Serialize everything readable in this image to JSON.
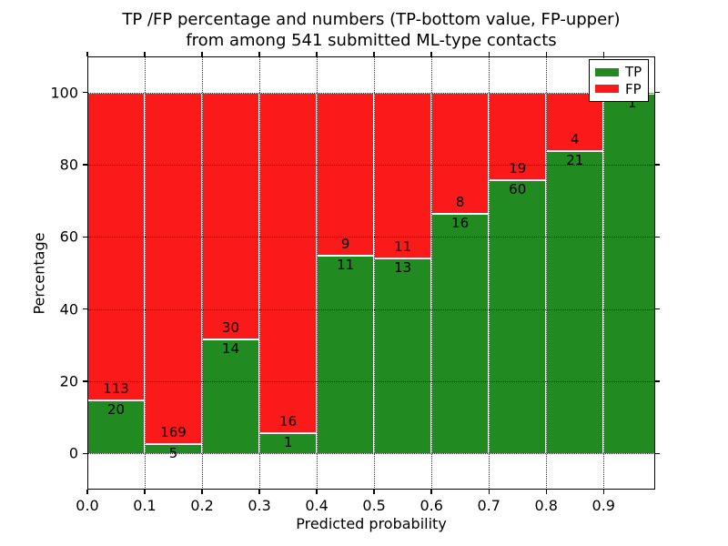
{
  "figure": {
    "title_line1": "TP /FP percentage and numbers (TP-bottom value, FP-upper)",
    "title_line2": "from among 541 submitted ML-type contacts"
  },
  "chart_data": {
    "type": "bar",
    "stacked": true,
    "normalized_to_percent": true,
    "title": "TP /FP percentage and numbers (TP-bottom value, FP-upper) from among 541 submitted ML-type contacts",
    "xlabel": "Predicted probability",
    "ylabel": "Percentage",
    "total_contacts": 541,
    "categories": [
      "0.0-0.1",
      "0.1-0.2",
      "0.2-0.3",
      "0.3-0.4",
      "0.4-0.5",
      "0.5-0.6",
      "0.6-0.7",
      "0.7-0.8",
      "0.8-0.9",
      "0.9-1.0"
    ],
    "bin_starts": [
      0.0,
      0.1,
      0.2,
      0.3,
      0.4,
      0.5,
      0.6,
      0.7,
      0.8,
      0.9
    ],
    "bin_width": 0.1,
    "series": [
      {
        "name": "TP",
        "color": "#218a21",
        "values": [
          20,
          5,
          14,
          1,
          11,
          13,
          16,
          60,
          21,
          1
        ]
      },
      {
        "name": "FP",
        "color": "#fb1a1a",
        "values": [
          113,
          169,
          30,
          16,
          9,
          11,
          8,
          19,
          4,
          0
        ]
      }
    ],
    "tp_percent": [
      15.0,
      2.9,
      31.8,
      5.9,
      55.0,
      54.2,
      66.7,
      75.9,
      84.0,
      100.0
    ],
    "x_tick_labels": [
      "0.0",
      "0.1",
      "0.2",
      "0.3",
      "0.4",
      "0.5",
      "0.6",
      "0.7",
      "0.8",
      "0.9"
    ],
    "y_ticks": [
      0,
      20,
      40,
      60,
      80,
      100
    ],
    "y_tick_labels": [
      "0",
      "20",
      "40",
      "60",
      "80",
      "100"
    ],
    "xlim": [
      0.0,
      0.99
    ],
    "ylim": [
      -10,
      110
    ],
    "grid": "dotted black, drawn above bars",
    "legend_position": "upper right"
  },
  "legend": {
    "entries": [
      {
        "label": "TP",
        "color": "#218a21"
      },
      {
        "label": "FP",
        "color": "#fb1a1a"
      }
    ]
  }
}
